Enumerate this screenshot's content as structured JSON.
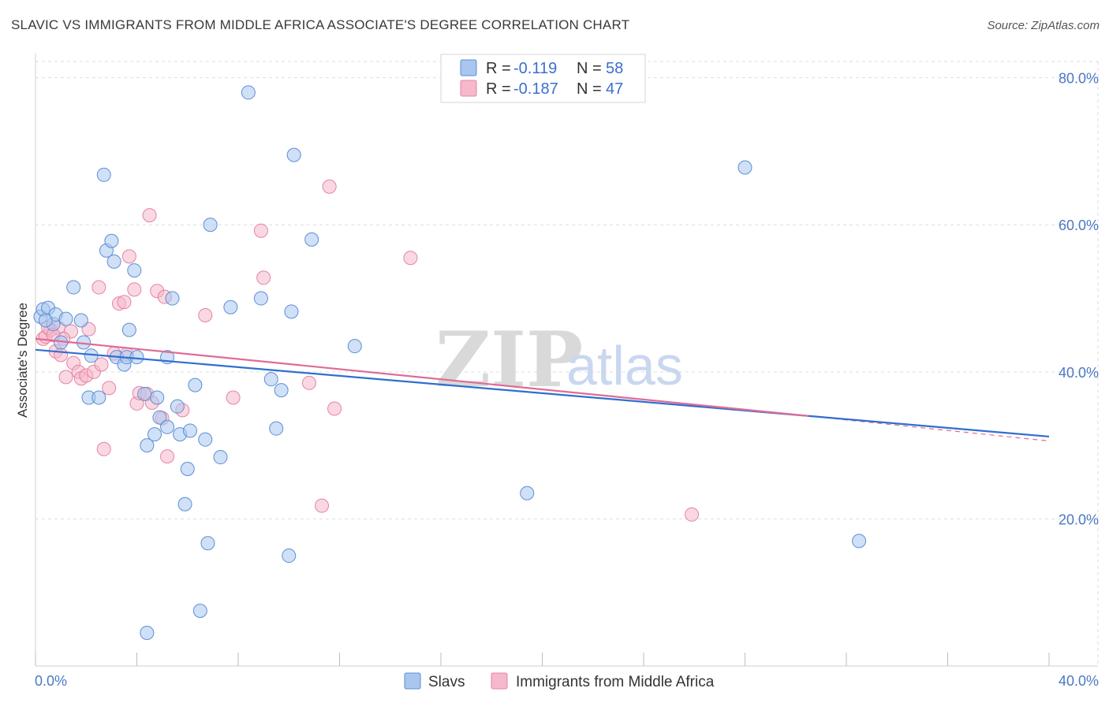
{
  "title": "SLAVIC VS IMMIGRANTS FROM MIDDLE AFRICA ASSOCIATE'S DEGREE CORRELATION CHART",
  "source": "Source: ZipAtlas.com",
  "watermark": {
    "zip": "ZIP",
    "atlas": "atlas"
  },
  "colors": {
    "slavs_fill": "#a9c6ef",
    "slavs_stroke": "#5b8fd6",
    "slavs_line": "#2f6fcf",
    "africa_fill": "#f6b8cb",
    "africa_stroke": "#e583a5",
    "africa_line": "#e06b96",
    "grid": "#dedede",
    "tick_text": "#4a78c4"
  },
  "legend": {
    "rows": [
      {
        "r_label": "R =",
        "r_value": "-0.119",
        "n_label": "N =",
        "n_value": "58"
      },
      {
        "r_label": "R =",
        "r_value": "-0.187",
        "n_label": "N =",
        "n_value": "47"
      }
    ]
  },
  "chart_data": {
    "type": "scatter",
    "title": "SLAVIC VS IMMIGRANTS FROM MIDDLE AFRICA ASSOCIATE'S DEGREE CORRELATION CHART",
    "xlabel": "",
    "ylabel": "Associate's Degree",
    "xlim": [
      0,
      40
    ],
    "ylim": [
      0,
      82
    ],
    "x_ticks": [
      {
        "value": 0,
        "label": "0.0%"
      },
      {
        "value": 40,
        "label": "40.0%"
      }
    ],
    "y_ticks": [
      {
        "value": 20,
        "label": "20.0%"
      },
      {
        "value": 40,
        "label": "40.0%"
      },
      {
        "value": 60,
        "label": "60.0%"
      },
      {
        "value": 80,
        "label": "80.0%"
      }
    ],
    "grid": true,
    "legend_position": "top-center",
    "series": [
      {
        "name": "Slavs",
        "trend": {
          "x": [
            0,
            40
          ],
          "y": [
            43.0,
            31.2
          ]
        },
        "points": [
          [
            0.2,
            47.5
          ],
          [
            0.3,
            48.5
          ],
          [
            0.5,
            48.7
          ],
          [
            0.7,
            46.5
          ],
          [
            0.8,
            47.8
          ],
          [
            1.0,
            44.0
          ],
          [
            1.2,
            47.2
          ],
          [
            1.5,
            51.5
          ],
          [
            1.8,
            47.0
          ],
          [
            1.9,
            44.0
          ],
          [
            2.1,
            36.5
          ],
          [
            2.2,
            42.2
          ],
          [
            2.5,
            36.5
          ],
          [
            2.7,
            66.8
          ],
          [
            2.8,
            56.5
          ],
          [
            3.0,
            57.8
          ],
          [
            3.1,
            55.0
          ],
          [
            3.2,
            42.0
          ],
          [
            3.5,
            41.0
          ],
          [
            3.6,
            42.0
          ],
          [
            3.7,
            45.7
          ],
          [
            3.9,
            53.8
          ],
          [
            4.0,
            42.0
          ],
          [
            4.3,
            37.0
          ],
          [
            4.4,
            30.0
          ],
          [
            4.7,
            31.5
          ],
          [
            4.8,
            36.5
          ],
          [
            4.9,
            33.8
          ],
          [
            5.2,
            32.5
          ],
          [
            5.2,
            42.0
          ],
          [
            5.4,
            50.0
          ],
          [
            5.6,
            35.3
          ],
          [
            5.7,
            31.5
          ],
          [
            5.9,
            22.0
          ],
          [
            6.0,
            26.8
          ],
          [
            6.1,
            32.0
          ],
          [
            6.3,
            38.2
          ],
          [
            6.5,
            7.5
          ],
          [
            6.7,
            30.8
          ],
          [
            6.8,
            16.7
          ],
          [
            6.9,
            60.0
          ],
          [
            7.3,
            28.4
          ],
          [
            7.7,
            48.8
          ],
          [
            8.4,
            78.0
          ],
          [
            8.9,
            50.0
          ],
          [
            9.3,
            39.0
          ],
          [
            9.5,
            32.3
          ],
          [
            9.7,
            37.5
          ],
          [
            10.0,
            15.0
          ],
          [
            10.1,
            48.2
          ],
          [
            10.2,
            69.5
          ],
          [
            10.9,
            58.0
          ],
          [
            12.6,
            43.5
          ],
          [
            19.4,
            23.5
          ],
          [
            4.4,
            4.5
          ],
          [
            28.0,
            67.8
          ],
          [
            32.5,
            17.0
          ],
          [
            0.4,
            47.0
          ]
        ]
      },
      {
        "name": "Immigrants from Middle Africa",
        "trend": {
          "x": [
            0,
            30.5
          ],
          "y": [
            44.5,
            34.0
          ]
        },
        "trend_dashed": {
          "x": [
            30.5,
            40
          ],
          "y": [
            34.0,
            30.6
          ]
        },
        "points": [
          [
            0.3,
            44.5
          ],
          [
            0.4,
            44.8
          ],
          [
            0.6,
            45.7
          ],
          [
            0.8,
            42.8
          ],
          [
            0.9,
            46.0
          ],
          [
            1.0,
            42.3
          ],
          [
            1.2,
            39.3
          ],
          [
            1.4,
            45.5
          ],
          [
            1.5,
            41.2
          ],
          [
            1.7,
            40.0
          ],
          [
            1.8,
            39.1
          ],
          [
            2.0,
            39.5
          ],
          [
            2.1,
            45.8
          ],
          [
            2.3,
            40.0
          ],
          [
            2.5,
            51.5
          ],
          [
            2.6,
            41.0
          ],
          [
            2.7,
            29.5
          ],
          [
            2.9,
            37.8
          ],
          [
            3.1,
            42.5
          ],
          [
            3.3,
            49.3
          ],
          [
            3.5,
            49.5
          ],
          [
            3.6,
            42.4
          ],
          [
            3.7,
            55.7
          ],
          [
            3.9,
            51.2
          ],
          [
            4.0,
            35.7
          ],
          [
            4.1,
            37.1
          ],
          [
            4.4,
            37.0
          ],
          [
            4.5,
            61.3
          ],
          [
            4.6,
            35.8
          ],
          [
            4.8,
            51.0
          ],
          [
            5.0,
            33.7
          ],
          [
            5.1,
            50.2
          ],
          [
            5.2,
            28.5
          ],
          [
            5.8,
            34.8
          ],
          [
            6.7,
            47.7
          ],
          [
            7.8,
            36.5
          ],
          [
            8.9,
            59.2
          ],
          [
            9.0,
            52.8
          ],
          [
            10.8,
            38.5
          ],
          [
            11.3,
            21.8
          ],
          [
            11.6,
            65.2
          ],
          [
            11.8,
            35.0
          ],
          [
            14.8,
            55.5
          ],
          [
            25.9,
            20.6
          ],
          [
            0.5,
            46.0
          ],
          [
            1.1,
            44.5
          ],
          [
            0.7,
            45.0
          ]
        ]
      }
    ]
  }
}
